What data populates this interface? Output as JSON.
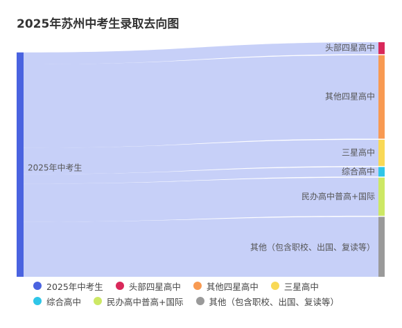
{
  "chart_data": {
    "type": "sankey",
    "title": "2025年苏州中考生录取去向图",
    "source": {
      "name": "2025年中考生",
      "color": "#4a63e0"
    },
    "link_color": "#c7d0f8",
    "targets": [
      {
        "name": "头部四星高中",
        "value": 5,
        "color": "#d9285a"
      },
      {
        "name": "其他四星高中",
        "value": 35,
        "color": "#f89a52"
      },
      {
        "name": "三星高中",
        "value": 11,
        "color": "#f9d956"
      },
      {
        "name": "综合高中",
        "value": 4,
        "color": "#2fc6e8"
      },
      {
        "name": "民办高中普高+国际",
        "value": 16,
        "color": "#cde865"
      },
      {
        "name": "其他（包含职校、出国、复读等）",
        "value": 26,
        "color": "#9a9a9a"
      }
    ],
    "legend_position": "bottom"
  }
}
